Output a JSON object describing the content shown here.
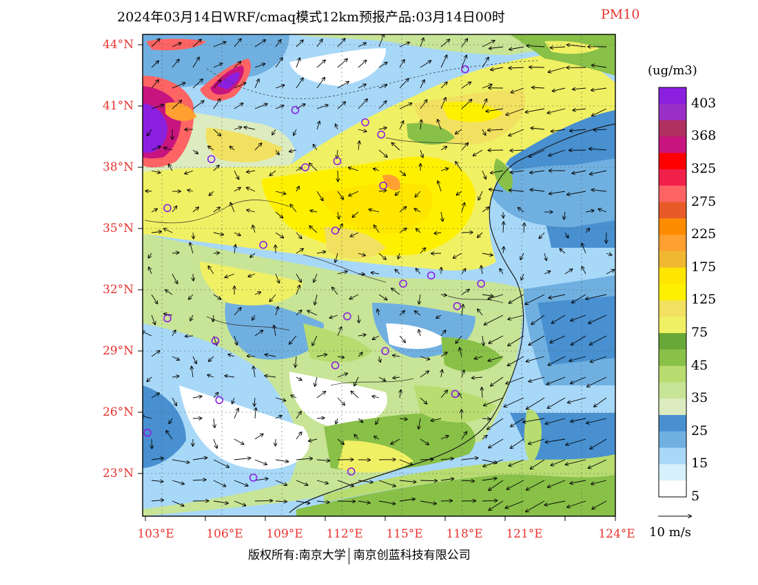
{
  "title": {
    "main": "2024年03月14日WRF/cmaq模式12km预报产品:03月14日00时",
    "variable": "PM10",
    "variable_color": "#e8322e"
  },
  "lat_labels": [
    "44°N",
    "41°N",
    "38°N",
    "35°N",
    "32°N",
    "29°N",
    "26°N",
    "23°N"
  ],
  "lon_labels": [
    "103°E",
    "106°E",
    "109°E",
    "112°E",
    "115°E",
    "118°E",
    "121°E",
    "124°E"
  ],
  "colorbar": {
    "unit": "(ug/m3)",
    "labels": [
      "403",
      "368",
      "325",
      "275",
      "225",
      "175",
      "125",
      "75",
      "45",
      "35",
      "25",
      "15",
      "5"
    ],
    "colors": [
      "#8a1fe0",
      "#9a2fc8",
      "#b03060",
      "#c8147e",
      "#ff0000",
      "#f0204a",
      "#ff6464",
      "#e85a28",
      "#ff8c00",
      "#ffa030",
      "#f0b830",
      "#ffe600",
      "#fff000",
      "#f2e060",
      "#f0f064",
      "#68a838",
      "#88c048",
      "#b8dc70",
      "#c8e496",
      "#dcecc0",
      "#4890d0",
      "#70b0e0",
      "#a8d8f8",
      "#d8f0fc",
      "#ffffff"
    ]
  },
  "wind_vector_label": "10 m/s",
  "copyright": {
    "left": "版权所有:南京大学",
    "right": "南京创蓝科技有限公司"
  },
  "stations": [
    {
      "lon": 119.0,
      "lat": 42.8
    },
    {
      "lon": 110.5,
      "lat": 40.8
    },
    {
      "lon": 114.0,
      "lat": 40.2
    },
    {
      "lon": 114.8,
      "lat": 39.6
    },
    {
      "lon": 106.3,
      "lat": 38.4
    },
    {
      "lon": 111.0,
      "lat": 38.0
    },
    {
      "lon": 112.6,
      "lat": 38.3
    },
    {
      "lon": 114.9,
      "lat": 37.1
    },
    {
      "lon": 104.1,
      "lat": 36.0
    },
    {
      "lon": 112.5,
      "lat": 34.9
    },
    {
      "lon": 108.9,
      "lat": 34.2
    },
    {
      "lon": 117.3,
      "lat": 32.7
    },
    {
      "lon": 115.9,
      "lat": 32.3
    },
    {
      "lon": 119.8,
      "lat": 32.3
    },
    {
      "lon": 118.6,
      "lat": 31.2
    },
    {
      "lon": 104.1,
      "lat": 30.6
    },
    {
      "lon": 113.1,
      "lat": 30.7
    },
    {
      "lon": 106.5,
      "lat": 29.5
    },
    {
      "lon": 115.0,
      "lat": 29.0
    },
    {
      "lon": 112.5,
      "lat": 28.3
    },
    {
      "lon": 118.5,
      "lat": 26.9
    },
    {
      "lon": 106.7,
      "lat": 26.6
    },
    {
      "lon": 103.1,
      "lat": 25.0
    },
    {
      "lon": 113.3,
      "lat": 23.1
    },
    {
      "lon": 108.4,
      "lat": 22.8
    }
  ]
}
